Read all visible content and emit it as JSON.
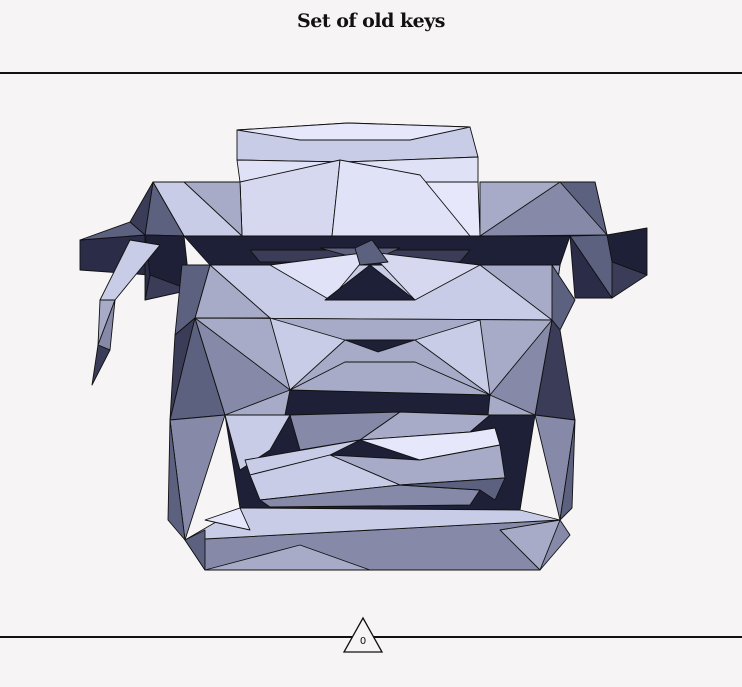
{
  "header": {
    "title": "Set of old keys"
  },
  "footer": {
    "page_number": "0"
  },
  "palette": {
    "background": "#f6f4f5",
    "lightest": "#e6e7fa",
    "light": "#c9cce6",
    "mid_light": "#a7abc7",
    "mid": "#868aa8",
    "mid_dark": "#5d6180",
    "dark": "#3a3c58",
    "darkest": "#1e2038"
  },
  "illustration": {
    "icon": "typewriter-icon"
  }
}
